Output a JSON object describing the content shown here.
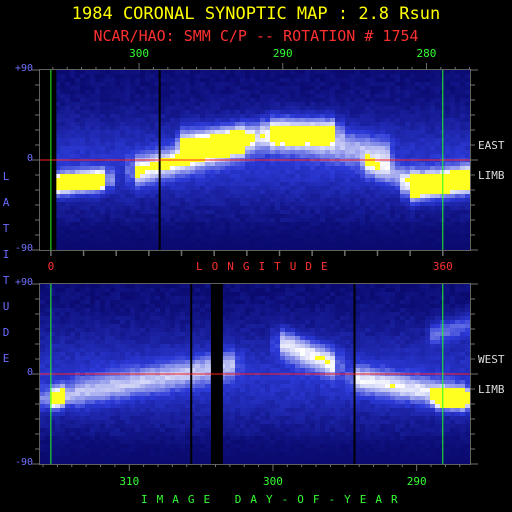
{
  "header": {
    "title": "1984 CORONAL SYNOPTIC MAP : 2.8 Rsun",
    "subtitle": "NCAR/HAO: SMM C/P -- ROTATION # 1754"
  },
  "axes": {
    "latitude_label": [
      "L",
      "A",
      "T",
      "I",
      "T",
      "U",
      "D",
      "E"
    ],
    "longitude_label": "LONGITUDE",
    "day_label": "IMAGE DAY-OF-YEAR"
  },
  "colors": {
    "background": "#000000",
    "low": "#0a0a70",
    "mid": "#2c3ad8",
    "high": "#ffffff",
    "saturated": "#ffff20",
    "equator": "#ff2020",
    "marker": "#20ff20"
  },
  "chart_data": [
    {
      "type": "heatmap",
      "name": "East Limb",
      "limb_labels": [
        "EAST",
        "LIMB"
      ],
      "top_axis": {
        "ticks": [
          300,
          290,
          280
        ]
      },
      "bottom_axis": {
        "ticks": [
          0,
          360
        ]
      },
      "y_ticks": [
        "+90",
        "0",
        "-90"
      ],
      "ylim": [
        -90,
        90
      ],
      "xlim": [
        -10,
        385
      ],
      "equator": 0,
      "markers_x": [
        0,
        360
      ],
      "lon_per_day": 13.2,
      "lon_at_day_300": 81,
      "data_gaps_lon": [
        [
          -10,
          5
        ],
        [
          99,
          100
        ]
      ],
      "features": [
        {
          "x0": 0,
          "x1": 50,
          "y0": -25,
          "y1": -20,
          "w": 7,
          "i": 1.5
        },
        {
          "x0": 330,
          "x1": 385,
          "y0": -28,
          "y1": -20,
          "w": 9,
          "i": 1.5
        },
        {
          "x0": 78,
          "x1": 180,
          "y0": -12,
          "y1": 18,
          "w": 10,
          "i": 0.85
        },
        {
          "x0": 120,
          "x1": 260,
          "y0": 18,
          "y1": 30,
          "w": 10,
          "i": 0.75
        },
        {
          "x0": 200,
          "x1": 310,
          "y0": 30,
          "y1": 5,
          "w": 12,
          "i": 0.55
        },
        {
          "x0": 290,
          "x1": 340,
          "y0": -5,
          "y1": -25,
          "w": 8,
          "i": 0.5
        },
        {
          "x0": 5,
          "x1": 385,
          "y0": -3,
          "y1": -3,
          "w": 25,
          "i": 0.22
        }
      ]
    },
    {
      "type": "heatmap",
      "name": "West Limb",
      "limb_labels": [
        "WEST",
        "LIMB"
      ],
      "bottom_axis": {
        "ticks": [
          310,
          300,
          290
        ]
      },
      "y_ticks": [
        "+90",
        "0",
        "-90"
      ],
      "ylim": [
        -90,
        90
      ],
      "xlim": [
        -10,
        385
      ],
      "equator": 0,
      "markers_x": [
        0,
        360
      ],
      "lon_per_day": 13.2,
      "lon_at_day_300": 204,
      "data_gaps_lon": [
        [
          128,
          129
        ],
        [
          147,
          158
        ],
        [
          278,
          279
        ]
      ],
      "features": [
        {
          "x0": 0,
          "x1": 15,
          "y0": -25,
          "y1": -22,
          "w": 7,
          "i": 1.5
        },
        {
          "x0": 20,
          "x1": 170,
          "y0": -20,
          "y1": 10,
          "w": 10,
          "i": 0.6
        },
        {
          "x0": 210,
          "x1": 260,
          "y0": 32,
          "y1": 10,
          "w": 10,
          "i": 0.85
        },
        {
          "x0": 280,
          "x1": 380,
          "y0": -5,
          "y1": -25,
          "w": 9,
          "i": 0.75
        },
        {
          "x0": 355,
          "x1": 385,
          "y0": -25,
          "y1": -25,
          "w": 6,
          "i": 1.1
        },
        {
          "x0": 350,
          "x1": 385,
          "y0": 40,
          "y1": 50,
          "w": 8,
          "i": 0.5
        },
        {
          "x0": -10,
          "x1": 385,
          "y0": -5,
          "y1": -5,
          "w": 28,
          "i": 0.2
        }
      ]
    }
  ]
}
